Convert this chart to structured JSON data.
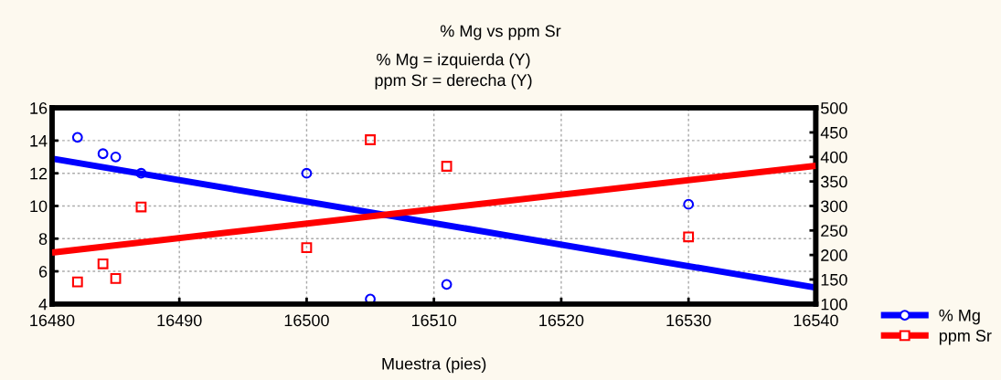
{
  "chart_data": {
    "type": "scatter",
    "title": "% Mg vs ppm Sr",
    "subtitle": "% Mg = izquierda (Y)\nppm Sr = derecha (Y)",
    "xlabel": "Muestra (pies)",
    "xlim": [
      16480,
      16540
    ],
    "xticks": [
      16480,
      16490,
      16500,
      16510,
      16520,
      16530,
      16540
    ],
    "ylim": [
      4,
      16
    ],
    "yticks": [
      4,
      6,
      8,
      10,
      12,
      14,
      16
    ],
    "y2lim": [
      100,
      500
    ],
    "y2ticks": [
      100,
      150,
      200,
      250,
      300,
      350,
      400,
      450,
      500
    ],
    "grid": true,
    "legend": "bottom right",
    "series": [
      {
        "name": "% Mg",
        "marker": "circle",
        "color": "#0000ff",
        "x": [
          16482,
          16484,
          16485,
          16487,
          16500,
          16505,
          16511,
          16530
        ],
        "values": [
          14.2,
          13.2,
          13.0,
          12.0,
          12.0,
          4.3,
          5.2,
          10.1
        ]
      },
      {
        "name": "ppm Sr",
        "marker": "square",
        "axis": "y2",
        "color": "#ff0000",
        "x": [
          16482,
          16484,
          16485,
          16487,
          16500,
          16505,
          16511,
          16530
        ],
        "values": [
          145,
          182,
          152,
          298,
          215,
          435,
          381,
          237
        ]
      },
      {
        "type": "line",
        "color": "#0000ff",
        "x": [
          16480,
          16540
        ],
        "values": [
          12.9,
          5.0
        ]
      },
      {
        "type": "line",
        "axis": "y2",
        "color": "#ff0000",
        "x": [
          16480,
          16540
        ],
        "values": [
          205,
          382
        ]
      }
    ]
  }
}
